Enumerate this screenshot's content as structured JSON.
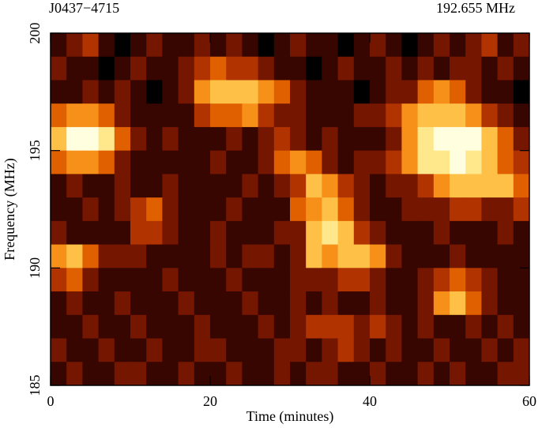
{
  "chart_data": {
    "type": "heatmap",
    "title": "J0437−4715",
    "subtitle": "192.655 MHz",
    "xlabel": "Time (minutes)",
    "ylabel": "Frequency (MHz)",
    "xlim": [
      0,
      60
    ],
    "ylim": [
      185,
      200
    ],
    "xticks": [
      0,
      20,
      40,
      60
    ],
    "yticks": [
      185,
      190,
      195,
      200
    ],
    "colormap": [
      "#000000",
      "#4a0800",
      "#a02400",
      "#e06000",
      "#ffa020",
      "#ffe070",
      "#ffffe0"
    ],
    "values": [
      [
        2,
        3,
        4,
        2,
        1,
        2,
        3,
        2,
        2,
        3,
        2,
        3,
        2,
        1,
        2,
        3,
        2,
        2,
        1,
        2,
        3,
        2,
        1,
        2,
        3,
        2,
        3,
        4,
        2,
        3
      ],
      [
        3,
        2,
        2,
        1,
        2,
        3,
        2,
        2,
        3,
        4,
        5,
        4,
        4,
        3,
        2,
        2,
        1,
        2,
        3,
        2,
        2,
        3,
        2,
        3,
        2,
        3,
        3,
        2,
        3,
        2
      ],
      [
        2,
        2,
        3,
        2,
        3,
        2,
        1,
        2,
        3,
        6,
        7,
        7,
        7,
        6,
        5,
        3,
        2,
        2,
        2,
        1,
        2,
        3,
        3,
        5,
        6,
        5,
        3,
        2,
        2,
        1
      ],
      [
        5,
        6,
        6,
        5,
        3,
        2,
        2,
        2,
        2,
        4,
        5,
        5,
        6,
        4,
        3,
        3,
        2,
        2,
        2,
        3,
        3,
        4,
        6,
        7,
        7,
        7,
        6,
        4,
        3,
        2
      ],
      [
        7,
        9,
        9,
        8,
        5,
        3,
        2,
        3,
        2,
        2,
        2,
        3,
        2,
        3,
        4,
        3,
        2,
        3,
        2,
        2,
        2,
        3,
        6,
        8,
        9,
        9,
        9,
        7,
        5,
        3
      ],
      [
        5,
        6,
        6,
        5,
        3,
        2,
        2,
        2,
        2,
        2,
        3,
        2,
        2,
        3,
        5,
        6,
        5,
        3,
        2,
        3,
        3,
        4,
        6,
        8,
        8,
        9,
        8,
        7,
        5,
        4
      ],
      [
        2,
        3,
        2,
        2,
        3,
        2,
        2,
        3,
        2,
        2,
        2,
        2,
        3,
        2,
        3,
        4,
        7,
        6,
        4,
        3,
        2,
        3,
        3,
        4,
        6,
        7,
        7,
        7,
        7,
        5
      ],
      [
        2,
        2,
        3,
        2,
        3,
        4,
        5,
        3,
        2,
        2,
        2,
        3,
        2,
        2,
        2,
        5,
        6,
        7,
        5,
        3,
        2,
        2,
        3,
        3,
        3,
        4,
        4,
        3,
        3,
        4
      ],
      [
        3,
        2,
        2,
        2,
        2,
        4,
        4,
        3,
        2,
        2,
        3,
        2,
        2,
        2,
        3,
        3,
        7,
        8,
        7,
        4,
        3,
        2,
        2,
        2,
        3,
        2,
        2,
        2,
        3,
        2
      ],
      [
        6,
        7,
        5,
        3,
        3,
        3,
        2,
        2,
        2,
        2,
        3,
        2,
        3,
        3,
        2,
        3,
        7,
        6,
        7,
        7,
        6,
        3,
        2,
        2,
        2,
        3,
        2,
        2,
        2,
        2
      ],
      [
        4,
        5,
        3,
        2,
        2,
        2,
        2,
        3,
        2,
        2,
        2,
        3,
        2,
        2,
        2,
        3,
        3,
        3,
        4,
        4,
        3,
        2,
        2,
        3,
        4,
        5,
        4,
        3,
        2,
        2
      ],
      [
        2,
        3,
        2,
        2,
        3,
        2,
        2,
        2,
        3,
        2,
        2,
        2,
        3,
        2,
        2,
        3,
        2,
        3,
        2,
        2,
        3,
        2,
        2,
        3,
        6,
        7,
        5,
        3,
        2,
        2
      ],
      [
        2,
        2,
        3,
        2,
        2,
        3,
        2,
        2,
        2,
        3,
        2,
        2,
        2,
        3,
        2,
        3,
        4,
        4,
        4,
        3,
        4,
        3,
        2,
        3,
        2,
        2,
        3,
        2,
        3,
        2
      ],
      [
        3,
        2,
        2,
        3,
        2,
        2,
        3,
        2,
        2,
        3,
        3,
        2,
        2,
        2,
        3,
        3,
        2,
        3,
        4,
        3,
        2,
        3,
        2,
        2,
        3,
        2,
        2,
        3,
        2,
        3
      ],
      [
        2,
        3,
        2,
        2,
        3,
        3,
        2,
        2,
        3,
        2,
        2,
        3,
        2,
        2,
        3,
        2,
        3,
        3,
        2,
        2,
        3,
        2,
        2,
        3,
        2,
        3,
        2,
        2,
        3,
        3
      ]
    ]
  }
}
